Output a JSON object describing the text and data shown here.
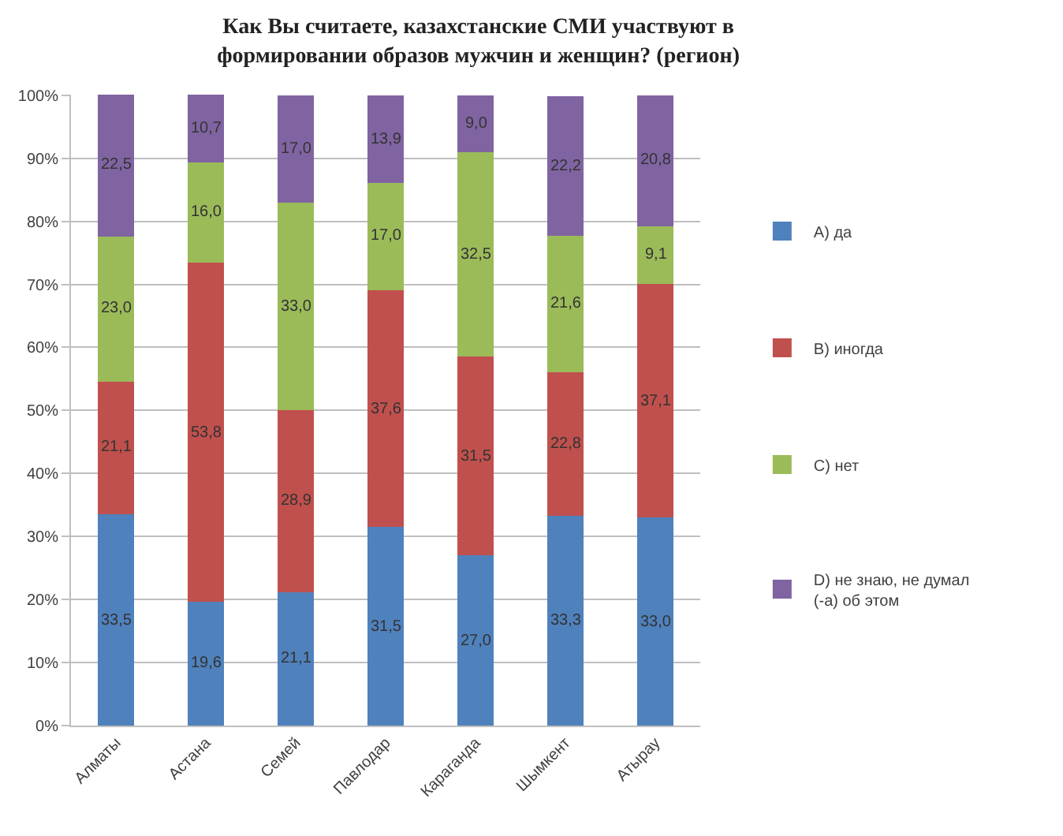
{
  "chart_data": {
    "type": "bar",
    "stacked": true,
    "title": "Как Вы считаете, казахстанские СМИ участвуют в формировании образов мужчин и женщин? (регион)",
    "categories": [
      "Алматы",
      "Астана",
      "Семей",
      "Павлодар",
      "Караганда",
      "Шымкент",
      "Атырау"
    ],
    "series": [
      {
        "name": "A) да",
        "color": "#4f81bd",
        "values": [
          33.5,
          19.6,
          21.1,
          31.5,
          27.0,
          33.3,
          33.0
        ],
        "value_labels": [
          "33,5",
          "19,6",
          "21,1",
          "31,5",
          "27,0",
          "33,3",
          "33,0"
        ]
      },
      {
        "name": "B) иногда",
        "color": "#c0504d",
        "values": [
          21.1,
          53.8,
          28.9,
          37.6,
          31.5,
          22.8,
          37.1
        ],
        "value_labels": [
          "21,1",
          "53,8",
          "28,9",
          "37,6",
          "31,5",
          "22,8",
          "37,1"
        ]
      },
      {
        "name": "C) нет",
        "color": "#9bbb59",
        "values": [
          23.0,
          16.0,
          33.0,
          17.0,
          32.5,
          21.6,
          9.1
        ],
        "value_labels": [
          "23,0",
          "16,0",
          "33,0",
          "17,0",
          "32,5",
          "21,6",
          "9,1"
        ]
      },
      {
        "name": "D) не знаю, не думал (-а) об этом",
        "color": "#8064a2",
        "values": [
          22.5,
          10.7,
          17.0,
          13.9,
          9.0,
          22.2,
          20.8
        ],
        "value_labels": [
          "22,5",
          "10,7",
          "17,0",
          "13,9",
          "9,0",
          "22,2",
          "20,8"
        ]
      }
    ],
    "ylim": [
      0,
      100.1
    ],
    "yticks": [
      {
        "value": 0,
        "label": "0%"
      },
      {
        "value": 10,
        "label": "10%"
      },
      {
        "value": 20,
        "label": "20%"
      },
      {
        "value": 30,
        "label": "30%"
      },
      {
        "value": 40,
        "label": "40%"
      },
      {
        "value": 50,
        "label": "50%"
      },
      {
        "value": 60,
        "label": "60%"
      },
      {
        "value": 70,
        "label": "70%"
      },
      {
        "value": 80,
        "label": "80%"
      },
      {
        "value": 90,
        "label": "90%"
      },
      {
        "value": 100,
        "label": "100%"
      }
    ],
    "grid": "y",
    "legend": "right"
  }
}
